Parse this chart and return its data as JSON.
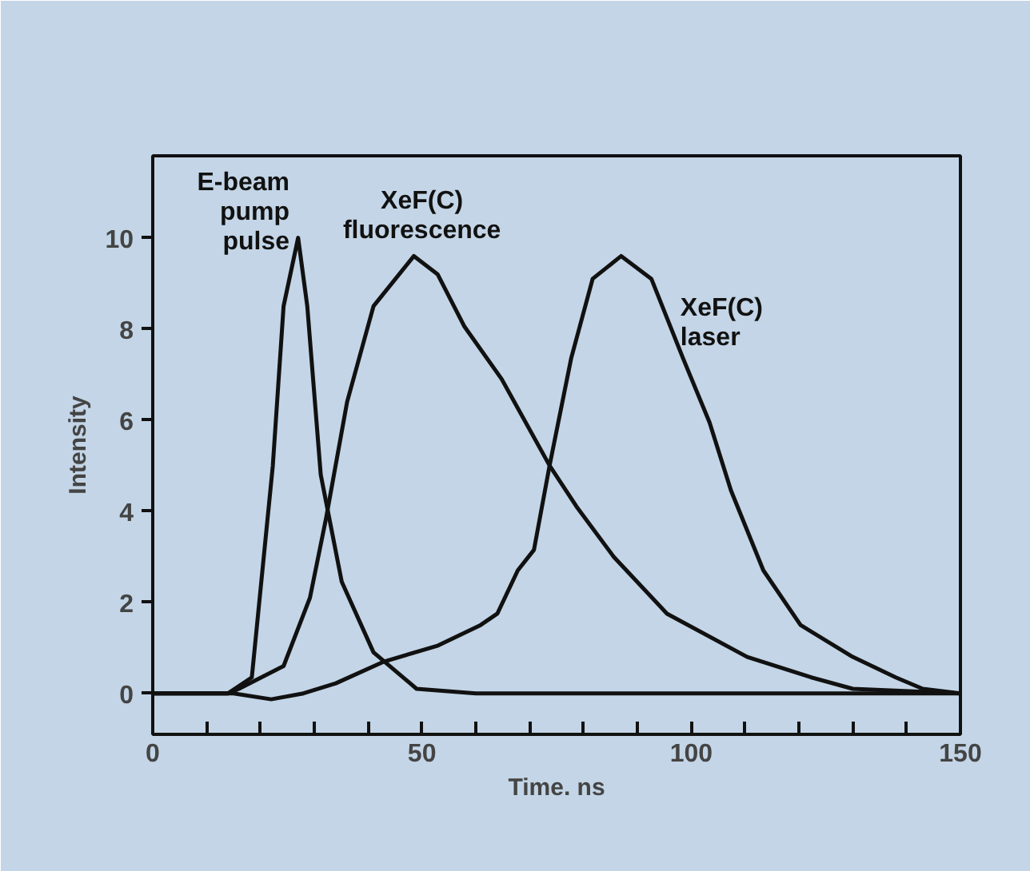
{
  "chart_data": {
    "type": "line",
    "xlabel": "Time. ns",
    "ylabel": "Intensity",
    "xlim": [
      0,
      150
    ],
    "ylim": [
      -0.9,
      11.8
    ],
    "xticks": [
      0,
      {
        "value": 10,
        "label": null
      },
      {
        "value": 20,
        "label": null
      },
      {
        "value": 30,
        "label": null
      },
      {
        "value": 40,
        "label": null
      },
      50,
      {
        "value": 60,
        "label": null
      },
      {
        "value": 70,
        "label": null
      },
      {
        "value": 80,
        "label": null
      },
      {
        "value": 90,
        "label": null
      },
      100,
      {
        "value": 110,
        "label": null
      },
      {
        "value": 120,
        "label": null
      },
      {
        "value": 130,
        "label": null
      },
      {
        "value": 140,
        "label": null
      },
      150
    ],
    "yticks": [
      0,
      2,
      4,
      6,
      8,
      10
    ],
    "grid": false,
    "marker": "none",
    "line_style": "solid",
    "series": [
      {
        "name": "E-beam\npump\npulse",
        "color": "#111111",
        "x": [
          0,
          14,
          18.4,
          22.3,
          24.3,
          27,
          28.7,
          31.2,
          35.1,
          41,
          49,
          60,
          80,
          100,
          120,
          150
        ],
        "values": [
          0,
          0,
          0.35,
          5.0,
          8.5,
          10,
          8.5,
          4.8,
          2.45,
          0.9,
          0.1,
          0,
          0,
          0,
          0,
          0
        ]
      },
      {
        "name": "XeF(C)\nfluorescence",
        "color": "#111111",
        "x": [
          0,
          14,
          16,
          24.3,
          29.2,
          32.2,
          36.1,
          41,
          48.5,
          52.9,
          57.9,
          64.8,
          73.7,
          78.7,
          85.6,
          95.5,
          110.4,
          122.3,
          130,
          150
        ],
        "values": [
          0,
          0,
          0.1,
          0.6,
          2.1,
          3.85,
          6.4,
          8.5,
          9.6,
          9.2,
          8.05,
          6.9,
          5.0,
          4.1,
          3.0,
          1.75,
          0.8,
          0.35,
          0.1,
          0
        ]
      },
      {
        "name": "XeF(C)\nlaser",
        "color": "#111111",
        "x": [
          0,
          15,
          22,
          28,
          34,
          43,
          53,
          60.9,
          64,
          67.8,
          70.8,
          73.7,
          77.7,
          81.7,
          87,
          92.6,
          98.5,
          103.4,
          107.4,
          113.4,
          120.3,
          130,
          138,
          143,
          150
        ],
        "values": [
          0,
          0,
          -0.13,
          0,
          0.22,
          0.7,
          1.05,
          1.5,
          1.75,
          2.7,
          3.15,
          5.0,
          7.35,
          9.1,
          9.6,
          9.1,
          7.35,
          5.95,
          4.45,
          2.7,
          1.5,
          0.8,
          0.35,
          0.1,
          0
        ]
      }
    ]
  }
}
